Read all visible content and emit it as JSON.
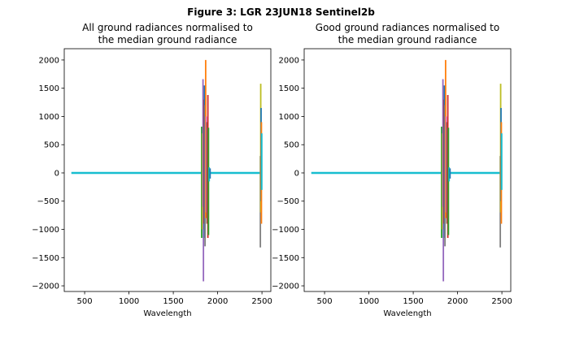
{
  "figure": {
    "suptitle": "Figure 3: LGR 23JUN18  Sentinel2b"
  },
  "palette": [
    "#1f77b4",
    "#ff7f0e",
    "#2ca02c",
    "#d62728",
    "#9467bd",
    "#8c564b",
    "#e377c2",
    "#7f7f7f",
    "#bcbd22",
    "#17becf"
  ],
  "chart_data": [
    {
      "type": "line",
      "title_lines": [
        "All ground radiances normalised to",
        "the median ground radiance"
      ],
      "xlabel": "Wavelength",
      "ylabel": "",
      "xlim": [
        270,
        2600
      ],
      "ylim": [
        -2100,
        2200
      ],
      "xticks": [
        500,
        1000,
        1500,
        2000,
        2500
      ],
      "yticks": [
        -2000,
        -1500,
        -1000,
        -500,
        0,
        500,
        1000,
        1500,
        2000
      ],
      "grid": false,
      "baseline": {
        "x_range": [
          350,
          2500
        ],
        "y": 0
      },
      "spikes": [
        {
          "x": 1820,
          "min": -1150,
          "max": 820,
          "color_index": 2
        },
        {
          "x": 1828,
          "min": -1000,
          "max": 700,
          "color_index": 8
        },
        {
          "x": 1835,
          "min": -600,
          "max": 1660,
          "color_index": 4
        },
        {
          "x": 1840,
          "min": -1920,
          "max": 1000,
          "color_index": 4
        },
        {
          "x": 1846,
          "min": -900,
          "max": 1300,
          "color_index": 3
        },
        {
          "x": 1852,
          "min": -1150,
          "max": 1550,
          "color_index": 0
        },
        {
          "x": 1858,
          "min": -1300,
          "max": 1200,
          "color_index": 7
        },
        {
          "x": 1865,
          "min": -800,
          "max": 2000,
          "color_index": 1
        },
        {
          "x": 1872,
          "min": -700,
          "max": 1000,
          "color_index": 6
        },
        {
          "x": 1880,
          "min": -900,
          "max": 900,
          "color_index": 5
        },
        {
          "x": 1890,
          "min": -1150,
          "max": 1380,
          "color_index": 3
        },
        {
          "x": 1897,
          "min": -1100,
          "max": 800,
          "color_index": 2
        },
        {
          "x": 1905,
          "min": -150,
          "max": 100,
          "color_index": 9
        },
        {
          "x": 1915,
          "min": -100,
          "max": 80,
          "color_index": 0
        },
        {
          "x": 2482,
          "min": -1320,
          "max": 300,
          "color_index": 7
        },
        {
          "x": 2486,
          "min": -700,
          "max": 1580,
          "color_index": 8
        },
        {
          "x": 2490,
          "min": -500,
          "max": 1150,
          "color_index": 0
        },
        {
          "x": 2494,
          "min": -900,
          "max": 900,
          "color_index": 1
        },
        {
          "x": 2498,
          "min": -300,
          "max": 700,
          "color_index": 9
        }
      ]
    },
    {
      "type": "line",
      "title_lines": [
        "Good ground radiances normalised to",
        "the median ground radiance"
      ],
      "xlabel": "Wavelength",
      "ylabel": "",
      "xlim": [
        270,
        2600
      ],
      "ylim": [
        -2100,
        2200
      ],
      "xticks": [
        500,
        1000,
        1500,
        2000,
        2500
      ],
      "yticks": [
        -2000,
        -1500,
        -1000,
        -500,
        0,
        500,
        1000,
        1500,
        2000
      ],
      "grid": false,
      "baseline": {
        "x_range": [
          350,
          2500
        ],
        "y": 0
      },
      "spikes": [
        {
          "x": 1820,
          "min": -1150,
          "max": 820,
          "color_index": 2
        },
        {
          "x": 1828,
          "min": -1000,
          "max": 700,
          "color_index": 8
        },
        {
          "x": 1835,
          "min": -600,
          "max": 1660,
          "color_index": 4
        },
        {
          "x": 1840,
          "min": -1920,
          "max": 1000,
          "color_index": 4
        },
        {
          "x": 1846,
          "min": -900,
          "max": 1300,
          "color_index": 3
        },
        {
          "x": 1852,
          "min": -1150,
          "max": 1550,
          "color_index": 0
        },
        {
          "x": 1858,
          "min": -1300,
          "max": 1200,
          "color_index": 7
        },
        {
          "x": 1865,
          "min": -800,
          "max": 2000,
          "color_index": 1
        },
        {
          "x": 1872,
          "min": -700,
          "max": 1000,
          "color_index": 6
        },
        {
          "x": 1880,
          "min": -900,
          "max": 900,
          "color_index": 5
        },
        {
          "x": 1890,
          "min": -1150,
          "max": 1380,
          "color_index": 3
        },
        {
          "x": 1897,
          "min": -1100,
          "max": 800,
          "color_index": 2
        },
        {
          "x": 1905,
          "min": -150,
          "max": 100,
          "color_index": 9
        },
        {
          "x": 1915,
          "min": -100,
          "max": 80,
          "color_index": 0
        },
        {
          "x": 2482,
          "min": -1320,
          "max": 300,
          "color_index": 7
        },
        {
          "x": 2486,
          "min": -700,
          "max": 1580,
          "color_index": 8
        },
        {
          "x": 2490,
          "min": -500,
          "max": 1150,
          "color_index": 0
        },
        {
          "x": 2494,
          "min": -900,
          "max": 900,
          "color_index": 1
        },
        {
          "x": 2498,
          "min": -300,
          "max": 700,
          "color_index": 9
        }
      ]
    }
  ]
}
